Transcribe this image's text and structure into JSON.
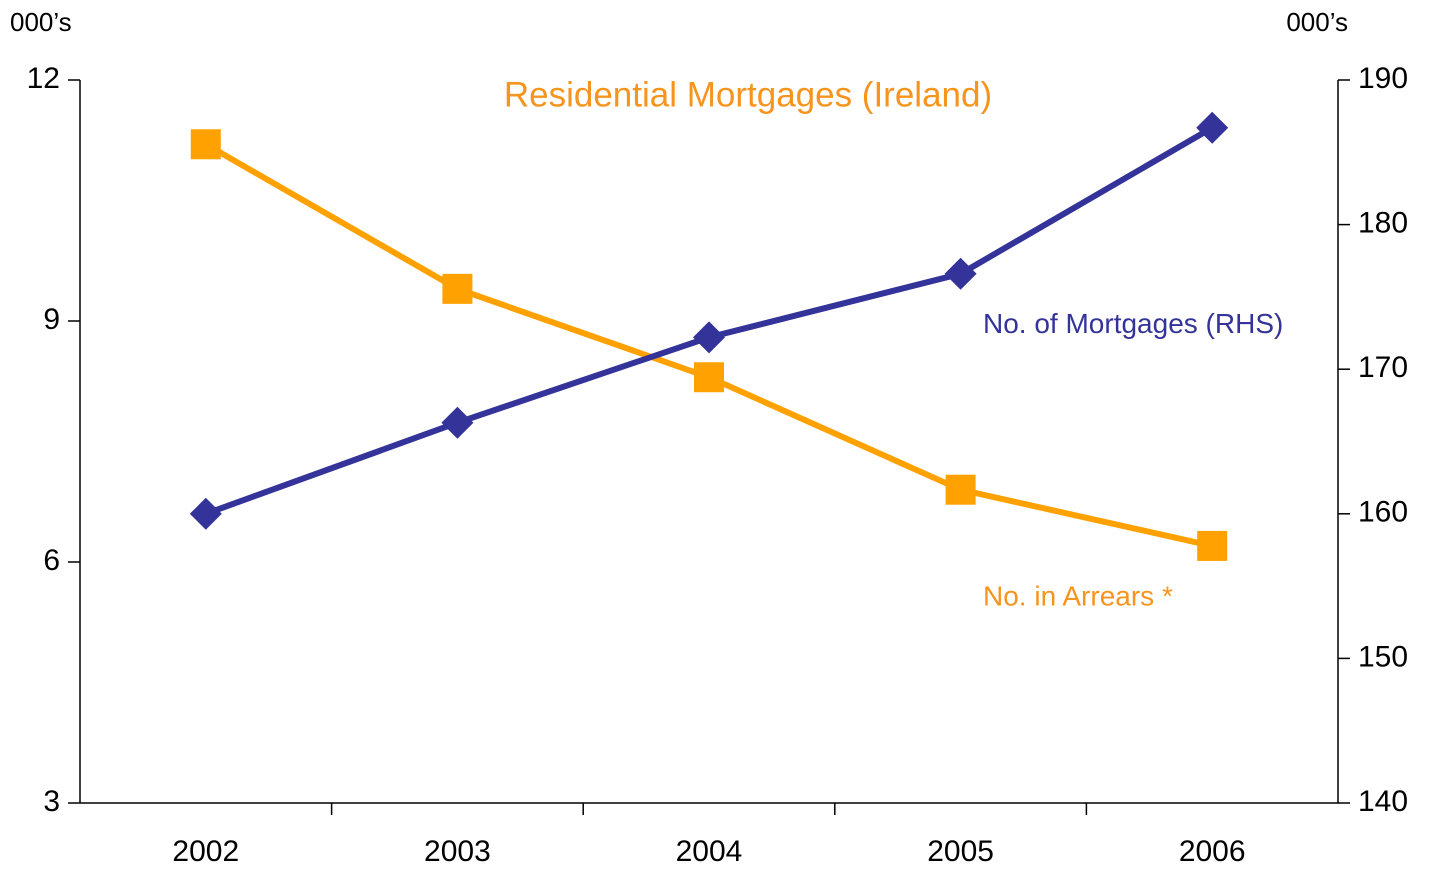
{
  "chart_data": {
    "type": "line",
    "title": "Residential Mortgages (Ireland)",
    "y_label": "000’s",
    "y2_label": "000’s",
    "categories": [
      "2002",
      "2003",
      "2004",
      "2005",
      "2006"
    ],
    "series": [
      {
        "name": "No. in Arrears *",
        "color": "#ffa100",
        "label_color": "#f7941d",
        "marker": "square",
        "values": [
          11.2,
          9.4,
          8.3,
          6.9,
          6.2
        ]
      },
      {
        "name": "No. of Mortgages (RHS)",
        "color": "#333399",
        "label_color": "#333399",
        "marker": "diamond",
        "axis": "y2",
        "values": [
          160,
          166.3,
          172.2,
          176.6,
          186.7
        ]
      }
    ],
    "ylim": [
      3,
      12
    ],
    "yticks": [
      3,
      6,
      9,
      12
    ],
    "y2lim": [
      140,
      190
    ],
    "y2ticks": [
      140,
      150,
      160,
      170,
      180,
      190
    ]
  }
}
